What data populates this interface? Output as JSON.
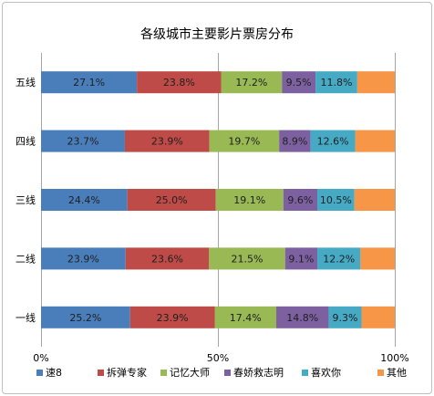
{
  "chart_data": {
    "type": "bar",
    "orientation": "horizontal",
    "stacked": "percent",
    "title": "各级城市主要影片票房分布",
    "categories": [
      "五线",
      "四线",
      "三线",
      "二线",
      "一线"
    ],
    "xlim": [
      0,
      100
    ],
    "x_ticks": [
      "0%",
      "50%",
      "100%"
    ],
    "grid": "vertical gridlines at 0%, 50%, 100%",
    "legend_position": "bottom",
    "series": [
      {
        "name": "速8",
        "color": "#4a7ebb",
        "values": [
          27.1,
          23.7,
          24.4,
          23.9,
          25.2
        ],
        "labels": [
          "27.1%",
          "23.7%",
          "24.4%",
          "23.9%",
          "25.2%"
        ]
      },
      {
        "name": "拆弹专家",
        "color": "#be4b48",
        "values": [
          23.8,
          23.9,
          25.0,
          23.6,
          23.9
        ],
        "labels": [
          "23.8%",
          "23.9%",
          "25.0%",
          "23.6%",
          "23.9%"
        ]
      },
      {
        "name": "记忆大师",
        "color": "#98b954",
        "values": [
          17.2,
          19.7,
          19.1,
          21.5,
          17.4
        ],
        "labels": [
          "17.2%",
          "19.7%",
          "19.1%",
          "21.5%",
          "17.4%"
        ]
      },
      {
        "name": "春娇救志明",
        "color": "#7d60a0",
        "values": [
          9.5,
          8.9,
          9.6,
          9.1,
          14.8
        ],
        "labels": [
          "9.5%",
          "8.9%",
          "9.6%",
          "9.1%",
          "14.8%"
        ]
      },
      {
        "name": "喜欢你",
        "color": "#46aac5",
        "values": [
          11.8,
          12.6,
          10.5,
          12.2,
          9.3
        ],
        "labels": [
          "11.8%",
          "12.6%",
          "10.5%",
          "12.2%",
          "9.3%"
        ]
      },
      {
        "name": "其他",
        "color": "#f79646",
        "values": [
          10.6,
          11.2,
          11.4,
          9.7,
          9.4
        ],
        "labels": [
          "",
          "",
          "",
          "",
          ""
        ]
      }
    ]
  }
}
